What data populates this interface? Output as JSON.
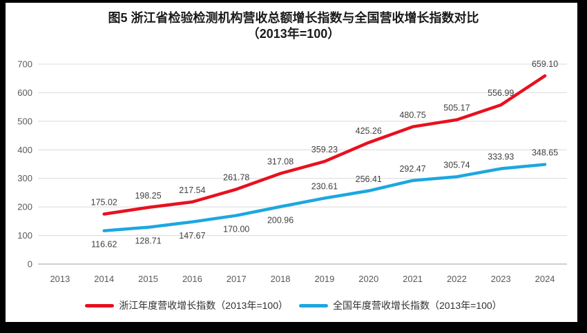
{
  "title": {
    "line1": "图5  浙江省检验检测机构营收总额增长指数与全国营收增长指数对比",
    "line2": "（2013年=100）"
  },
  "colors": {
    "zhejiang_red": "#E8101E",
    "national_blue": "#1CA7E0",
    "gridline": "#D9D9D9",
    "axis_line": "#BFBFBF",
    "tick_label": "#595959",
    "data_label": "#404040",
    "frame": "#000000"
  },
  "legend": [
    {
      "label": "浙江年度营收增长指数（2013年=100）",
      "color": "#E8101E"
    },
    {
      "label": "全国年度营收增长指数（2013年=100）",
      "color": "#1CA7E0"
    }
  ],
  "chart_data": {
    "type": "line",
    "x": [
      "2013",
      "2014",
      "2015",
      "2016",
      "2017",
      "2018",
      "2019",
      "2020",
      "2021",
      "2022",
      "2023",
      "2024"
    ],
    "series": [
      {
        "name": "浙江年度营收增长指数（2013年=100）",
        "color": "#E8101E",
        "x_start_index": 1,
        "values": [
          175.02,
          198.25,
          217.54,
          261.78,
          317.08,
          359.23,
          425.26,
          480.75,
          505.17,
          556.99,
          659.1
        ],
        "labels": [
          "175.02",
          "198.25",
          "217.54",
          "261.78",
          "317.08",
          "359.23",
          "425.26",
          "480.75",
          "505.17",
          "556.99",
          "659.10"
        ],
        "label_positions": [
          "above",
          "above",
          "above",
          "above",
          "above",
          "above",
          "above",
          "above",
          "above",
          "above",
          "above"
        ]
      },
      {
        "name": "全国年度营收增长指数（2013年=100）",
        "color": "#1CA7E0",
        "x_start_index": 1,
        "values": [
          116.62,
          128.71,
          147.67,
          170.0,
          200.96,
          230.61,
          256.41,
          292.47,
          305.74,
          333.93,
          348.65
        ],
        "labels": [
          "116.62",
          "128.71",
          "147.67",
          "170.00",
          "200.96",
          "230.61",
          "256.41",
          "292.47",
          "305.74",
          "333.93",
          "348.65"
        ],
        "label_positions": [
          "below",
          "below",
          "below",
          "below",
          "below",
          "above",
          "above",
          "above",
          "above",
          "above",
          "above"
        ]
      }
    ],
    "ylim": [
      0,
      700
    ],
    "y_ticks": [
      0,
      100,
      200,
      300,
      400,
      500,
      600,
      700
    ],
    "grid": true,
    "legend_position": "bottom"
  }
}
